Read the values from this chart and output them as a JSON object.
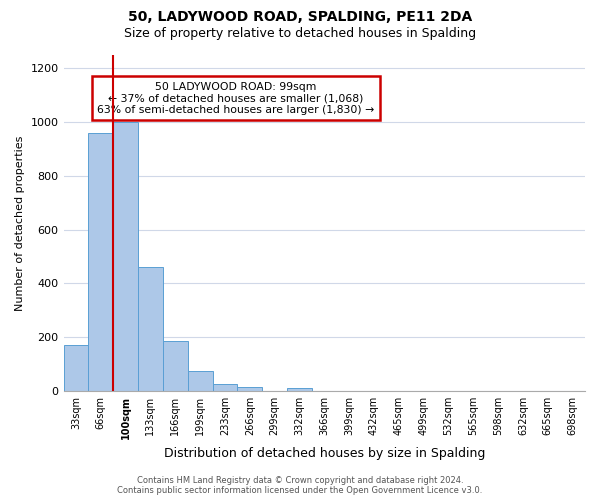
{
  "title": "50, LADYWOOD ROAD, SPALDING, PE11 2DA",
  "subtitle": "Size of property relative to detached houses in Spalding",
  "xlabel": "Distribution of detached houses by size in Spalding",
  "ylabel": "Number of detached properties",
  "bin_labels": [
    "33sqm",
    "66sqm",
    "100sqm",
    "133sqm",
    "166sqm",
    "199sqm",
    "233sqm",
    "266sqm",
    "299sqm",
    "332sqm",
    "366sqm",
    "399sqm",
    "432sqm",
    "465sqm",
    "499sqm",
    "532sqm",
    "565sqm",
    "598sqm",
    "632sqm",
    "665sqm",
    "698sqm"
  ],
  "bar_heights": [
    170,
    960,
    1000,
    460,
    185,
    75,
    25,
    15,
    0,
    10,
    0,
    0,
    0,
    0,
    0,
    0,
    0,
    0,
    0,
    0,
    0
  ],
  "bar_color": "#adc8e8",
  "bar_edge_color": "#5a9fd4",
  "property_size": "99sqm",
  "annotation_title": "50 LADYWOOD ROAD: 99sqm",
  "annotation_line1": "← 37% of detached houses are smaller (1,068)",
  "annotation_line2": "63% of semi-detached houses are larger (1,830) →",
  "annotation_box_color": "#cc0000",
  "red_line_x": 1.5,
  "ylim": [
    0,
    1250
  ],
  "yticks": [
    0,
    200,
    400,
    600,
    800,
    1000,
    1200
  ],
  "grid_color": "#d0d8e8",
  "background_color": "#ffffff",
  "footer_line1": "Contains HM Land Registry data © Crown copyright and database right 2024.",
  "footer_line2": "Contains public sector information licensed under the Open Government Licence v3.0."
}
